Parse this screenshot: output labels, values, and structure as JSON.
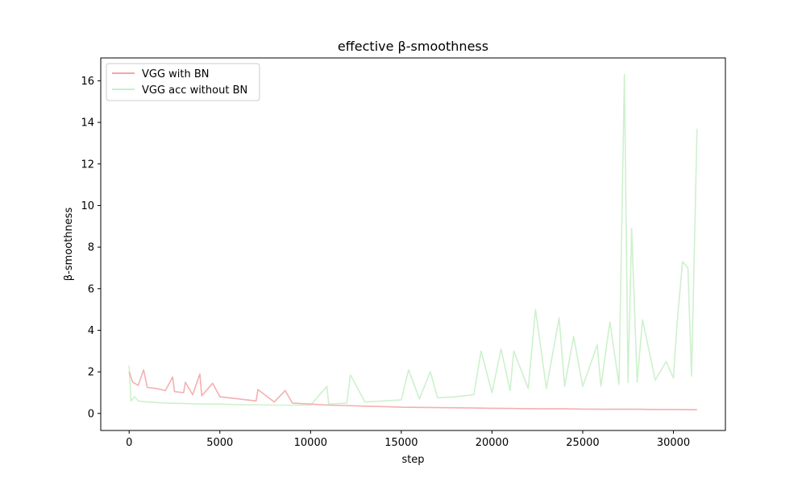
{
  "chart_data": {
    "type": "line",
    "title": "effective β-smoothness",
    "xlabel": "step",
    "ylabel": "β-smoothness",
    "xlim": [
      -1565,
      32865
    ],
    "ylim": [
      -0.82,
      17.1
    ],
    "xticks": [
      0,
      5000,
      10000,
      15000,
      20000,
      25000,
      30000
    ],
    "yticks": [
      0,
      2,
      4,
      6,
      8,
      10,
      12,
      14,
      16
    ],
    "grid": false,
    "legend_position": "top-left",
    "series": [
      {
        "name": "VGG with BN",
        "color": "#f4a6a6",
        "x": [
          0,
          200,
          500,
          800,
          1000,
          1500,
          2000,
          2400,
          2500,
          3000,
          3100,
          3500,
          3900,
          4000,
          4600,
          5000,
          6000,
          7000,
          7100,
          8000,
          8600,
          9000,
          10000,
          11000,
          12000,
          13000,
          14000,
          15000,
          16000,
          17000,
          18000,
          19000,
          20000,
          21000,
          22000,
          23000,
          24000,
          25000,
          26000,
          27000,
          28000,
          29000,
          30000,
          31000,
          31300
        ],
        "values": [
          2.0,
          1.5,
          1.35,
          2.1,
          1.25,
          1.2,
          1.1,
          1.75,
          1.05,
          1.0,
          1.5,
          0.9,
          1.9,
          0.85,
          1.45,
          0.8,
          0.7,
          0.6,
          1.15,
          0.55,
          1.1,
          0.5,
          0.45,
          0.4,
          0.38,
          0.35,
          0.33,
          0.3,
          0.29,
          0.28,
          0.27,
          0.26,
          0.25,
          0.24,
          0.23,
          0.22,
          0.22,
          0.21,
          0.2,
          0.2,
          0.2,
          0.19,
          0.19,
          0.18,
          0.18
        ]
      },
      {
        "name": "VGG acc without BN",
        "color": "#c8f0c8",
        "x": [
          0,
          100,
          300,
          500,
          1000,
          2000,
          3000,
          4000,
          5000,
          6000,
          7000,
          8000,
          9000,
          10000,
          10900,
          11000,
          12000,
          12200,
          13000,
          14000,
          15000,
          15400,
          16000,
          16600,
          17000,
          18000,
          19000,
          19400,
          20000,
          20500,
          21000,
          21200,
          22000,
          22400,
          23000,
          23700,
          24000,
          24500,
          25000,
          25800,
          26000,
          26500,
          27000,
          27300,
          27500,
          27700,
          28000,
          28300,
          29000,
          29600,
          30000,
          30200,
          30500,
          30800,
          31000,
          31300
        ],
        "values": [
          2.3,
          0.6,
          0.8,
          0.6,
          0.55,
          0.5,
          0.48,
          0.45,
          0.45,
          0.42,
          0.42,
          0.4,
          0.4,
          0.4,
          1.3,
          0.45,
          0.5,
          1.85,
          0.55,
          0.6,
          0.65,
          2.1,
          0.7,
          2.0,
          0.75,
          0.8,
          0.9,
          3.0,
          1.0,
          3.1,
          1.1,
          3.0,
          1.2,
          5.0,
          1.2,
          4.6,
          1.3,
          3.7,
          1.3,
          3.3,
          1.3,
          4.4,
          1.4,
          16.3,
          1.5,
          8.9,
          1.5,
          4.5,
          1.6,
          2.5,
          1.7,
          4.3,
          7.3,
          7.0,
          1.8,
          13.7
        ]
      }
    ]
  }
}
